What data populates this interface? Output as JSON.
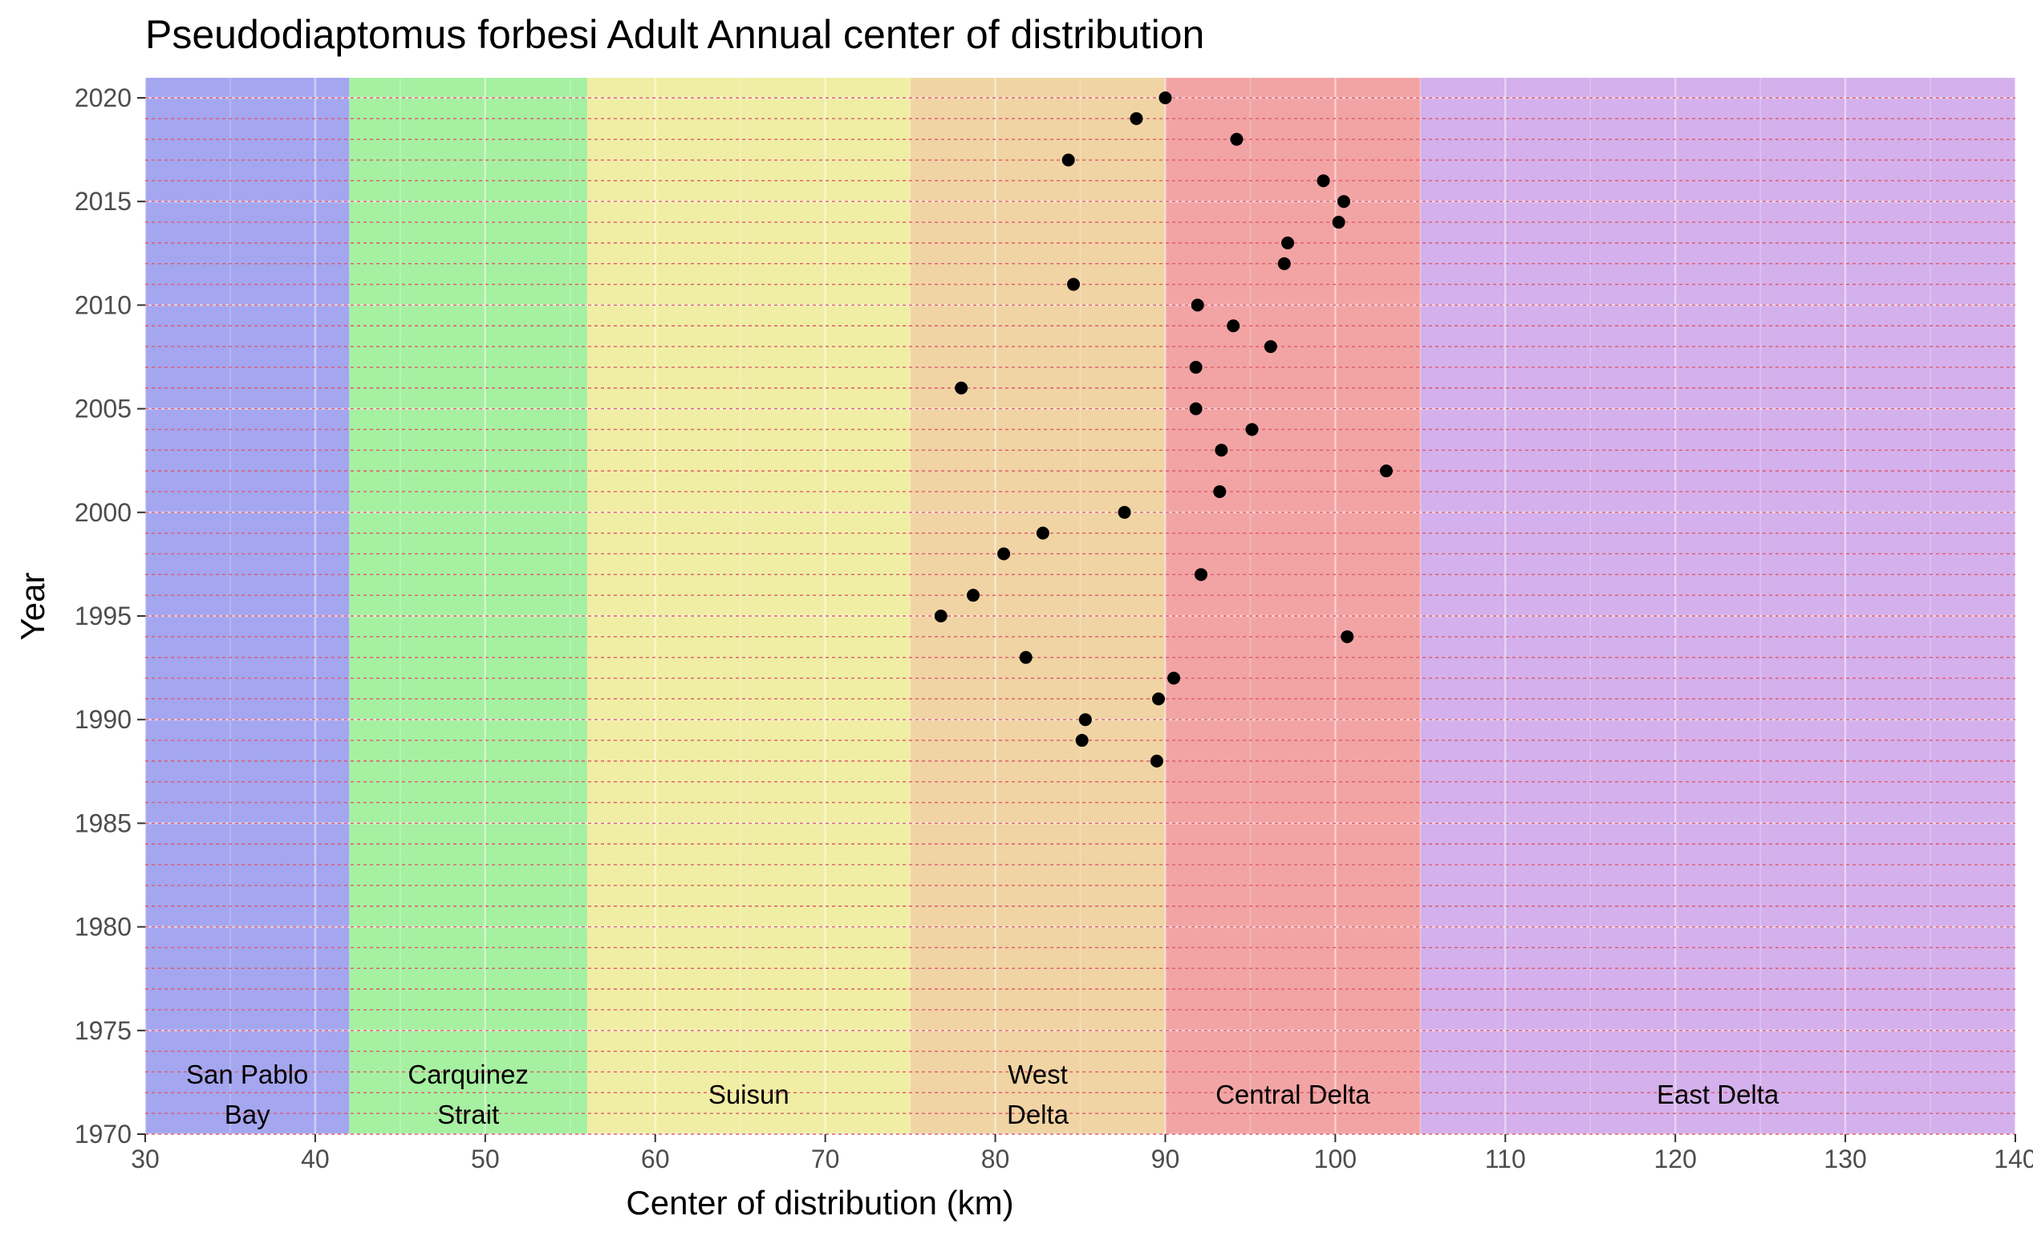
{
  "chart_data": {
    "type": "scatter",
    "title": "Pseudodiaptomus forbesi Adult Annual center of distribution",
    "xlabel": "Center of distribution (km)",
    "ylabel": "Year",
    "xlim": [
      30,
      140
    ],
    "ylim": [
      1970,
      2021
    ],
    "x_ticks": [
      30,
      40,
      50,
      60,
      70,
      80,
      90,
      100,
      110,
      120,
      130,
      140
    ],
    "y_ticks": [
      1970,
      1975,
      1980,
      1985,
      1990,
      1995,
      2000,
      2005,
      2010,
      2015,
      2020
    ],
    "grid": true,
    "legend": "none",
    "year_reference_lines": {
      "from": 1970,
      "to": 2020,
      "step": 1,
      "style": "dashed",
      "color": "#e05a6a"
    },
    "regions": [
      {
        "name": "San Pablo Bay",
        "label_lines": [
          "San Pablo",
          "Bay"
        ],
        "xmin": 30,
        "xmax": 42,
        "color": "#a4a6f0"
      },
      {
        "name": "Carquinez Strait",
        "label_lines": [
          "Carquinez",
          "Strait"
        ],
        "xmin": 42,
        "xmax": 56,
        "color": "#a6f0a2"
      },
      {
        "name": "Suisun",
        "label_lines": [
          "Suisun"
        ],
        "xmin": 56,
        "xmax": 75,
        "color": "#f0eea4"
      },
      {
        "name": "West Delta",
        "label_lines": [
          "West",
          "Delta"
        ],
        "xmin": 75,
        "xmax": 90,
        "color": "#f0d4a4"
      },
      {
        "name": "Central Delta",
        "label_lines": [
          "Central Delta"
        ],
        "xmin": 90,
        "xmax": 105,
        "color": "#f2a4a4"
      },
      {
        "name": "East Delta",
        "label_lines": [
          "East Delta"
        ],
        "xmin": 105,
        "xmax": 140,
        "color": "#d4b0ec"
      }
    ],
    "points": [
      {
        "year": 1988,
        "x": 89.5
      },
      {
        "year": 1989,
        "x": 85.1
      },
      {
        "year": 1990,
        "x": 85.3
      },
      {
        "year": 1991,
        "x": 89.6
      },
      {
        "year": 1992,
        "x": 90.5
      },
      {
        "year": 1993,
        "x": 81.8
      },
      {
        "year": 1994,
        "x": 100.7
      },
      {
        "year": 1995,
        "x": 76.8
      },
      {
        "year": 1996,
        "x": 78.7
      },
      {
        "year": 1997,
        "x": 92.1
      },
      {
        "year": 1998,
        "x": 80.5
      },
      {
        "year": 1999,
        "x": 82.8
      },
      {
        "year": 2000,
        "x": 87.6
      },
      {
        "year": 2001,
        "x": 93.2
      },
      {
        "year": 2002,
        "x": 103.0
      },
      {
        "year": 2003,
        "x": 93.3
      },
      {
        "year": 2004,
        "x": 95.1
      },
      {
        "year": 2005,
        "x": 91.8
      },
      {
        "year": 2006,
        "x": 78.0
      },
      {
        "year": 2007,
        "x": 91.8
      },
      {
        "year": 2008,
        "x": 96.2
      },
      {
        "year": 2009,
        "x": 94.0
      },
      {
        "year": 2010,
        "x": 91.9
      },
      {
        "year": 2011,
        "x": 84.6
      },
      {
        "year": 2012,
        "x": 97.0
      },
      {
        "year": 2013,
        "x": 97.2
      },
      {
        "year": 2014,
        "x": 100.2
      },
      {
        "year": 2015,
        "x": 100.5
      },
      {
        "year": 2016,
        "x": 99.3
      },
      {
        "year": 2017,
        "x": 84.3
      },
      {
        "year": 2018,
        "x": 94.2
      },
      {
        "year": 2019,
        "x": 88.3
      },
      {
        "year": 2020,
        "x": 90.0
      }
    ]
  }
}
